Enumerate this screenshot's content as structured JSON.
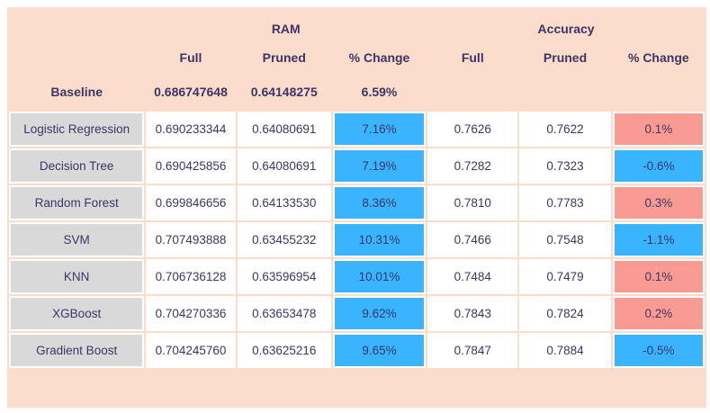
{
  "colors": {
    "background": "#ffffff",
    "panel_peach": "#fcdcca",
    "model_cell_gray": "#d9d9d9",
    "value_cell_white": "#ffffff",
    "change_blue": "#38b5fe",
    "change_salmon": "#fa9b93",
    "text_dark": "#3c3566"
  },
  "chart_data": {
    "type": "table",
    "title": "",
    "column_groups": [
      {
        "label": "RAM",
        "columns": [
          "Full",
          "Pruned",
          "% Change"
        ]
      },
      {
        "label": "Accuracy",
        "columns": [
          "Full",
          "Pruned",
          "% Change"
        ]
      }
    ],
    "baseline": {
      "label": "Baseline",
      "ram_full": "0.686747648",
      "ram_pruned": "0.64148275",
      "ram_change": "6.59%"
    },
    "rows": [
      {
        "model": "Logistic Regression",
        "ram_full": "0.690233344",
        "ram_pruned": "0.64080691",
        "ram_change": "7.16%",
        "ram_change_style": "blue",
        "acc_full": "0.7626",
        "acc_pruned": "0.7622",
        "acc_change": "0.1%",
        "acc_change_style": "salmon"
      },
      {
        "model": "Decision Tree",
        "ram_full": "0.690425856",
        "ram_pruned": "0.64080691",
        "ram_change": "7.19%",
        "ram_change_style": "blue",
        "acc_full": "0.7282",
        "acc_pruned": "0.7323",
        "acc_change": "-0.6%",
        "acc_change_style": "blue"
      },
      {
        "model": "Random Forest",
        "ram_full": "0.699846656",
        "ram_pruned": "0.64133530",
        "ram_change": "8.36%",
        "ram_change_style": "blue",
        "acc_full": "0.7810",
        "acc_pruned": "0.7783",
        "acc_change": "0.3%",
        "acc_change_style": "salmon"
      },
      {
        "model": "SVM",
        "ram_full": "0.707493888",
        "ram_pruned": "0.63455232",
        "ram_change": "10.31%",
        "ram_change_style": "blue",
        "acc_full": "0.7466",
        "acc_pruned": "0.7548",
        "acc_change": "-1.1%",
        "acc_change_style": "blue"
      },
      {
        "model": "KNN",
        "ram_full": "0.706736128",
        "ram_pruned": "0.63596954",
        "ram_change": "10.01%",
        "ram_change_style": "blue",
        "acc_full": "0.7484",
        "acc_pruned": "0.7479",
        "acc_change": "0.1%",
        "acc_change_style": "salmon"
      },
      {
        "model": "XGBoost",
        "ram_full": "0.704270336",
        "ram_pruned": "0.63653478",
        "ram_change": "9.62%",
        "ram_change_style": "blue",
        "acc_full": "0.7843",
        "acc_pruned": "0.7824",
        "acc_change": "0.2%",
        "acc_change_style": "salmon"
      },
      {
        "model": "Gradient Boost",
        "ram_full": "0.704245760",
        "ram_pruned": "0.63625216",
        "ram_change": "9.65%",
        "ram_change_style": "blue",
        "acc_full": "0.7847",
        "acc_pruned": "0.7884",
        "acc_change": "-0.5%",
        "acc_change_style": "blue"
      }
    ]
  }
}
